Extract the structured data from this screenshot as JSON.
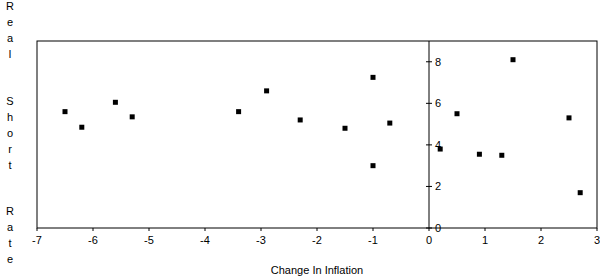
{
  "chart_data": {
    "type": "scatter",
    "x_label": "Change In Inflation",
    "y_label": "Real Short Rate",
    "x": [
      -6.5,
      -6.2,
      -5.6,
      -5.3,
      -3.4,
      -2.9,
      -2.3,
      -1.5,
      -1.0,
      -1.0,
      -0.7,
      0.2,
      0.5,
      0.9,
      1.3,
      1.5,
      2.5,
      2.7
    ],
    "values": [
      5.6,
      4.85,
      6.05,
      5.35,
      5.6,
      6.6,
      5.2,
      4.8,
      7.25,
      3.0,
      5.05,
      3.8,
      5.5,
      3.55,
      3.5,
      8.1,
      5.3,
      1.7
    ],
    "color": "#000000",
    "marker": "square",
    "xlim": [
      -7,
      3
    ],
    "xticks": [
      -7,
      -6,
      -5,
      -4,
      -3,
      -2,
      -1,
      0,
      1,
      2,
      3
    ],
    "ylim": [
      0,
      9
    ],
    "yticks": [
      0,
      2,
      4,
      6,
      8
    ],
    "grid": false
  }
}
